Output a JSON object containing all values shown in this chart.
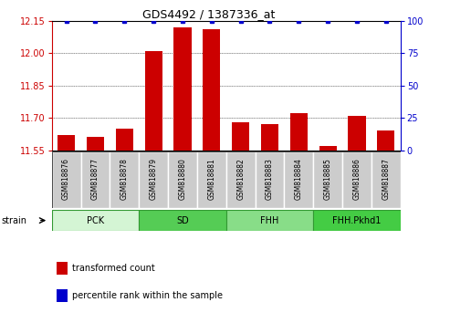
{
  "title": "GDS4492 / 1387336_at",
  "samples": [
    "GSM818876",
    "GSM818877",
    "GSM818878",
    "GSM818879",
    "GSM818880",
    "GSM818881",
    "GSM818882",
    "GSM818883",
    "GSM818884",
    "GSM818885",
    "GSM818886",
    "GSM818887"
  ],
  "transformed_counts": [
    11.62,
    11.61,
    11.65,
    12.01,
    12.12,
    12.11,
    11.68,
    11.67,
    11.72,
    11.57,
    11.71,
    11.64
  ],
  "percentile_ranks": [
    100,
    100,
    100,
    100,
    100,
    100,
    100,
    100,
    100,
    100,
    100,
    100
  ],
  "ylim_left": [
    11.55,
    12.15
  ],
  "ylim_right": [
    0,
    100
  ],
  "yticks_left": [
    11.55,
    11.7,
    11.85,
    12.0,
    12.15
  ],
  "yticks_right": [
    0,
    25,
    50,
    75,
    100
  ],
  "groups": [
    {
      "label": "PCK",
      "start": 0,
      "end": 3,
      "color": "#d4f5d4"
    },
    {
      "label": "SD",
      "start": 3,
      "end": 6,
      "color": "#55cc55"
    },
    {
      "label": "FHH",
      "start": 6,
      "end": 9,
      "color": "#88dd88"
    },
    {
      "label": "FHH.Pkhd1",
      "start": 9,
      "end": 12,
      "color": "#44cc44"
    }
  ],
  "bar_color": "#cc0000",
  "dot_color": "#0000cc",
  "grid_color": "#000000",
  "tick_color_left": "#cc0000",
  "tick_color_right": "#0000cc",
  "bar_width": 0.6,
  "sample_box_color": "#cccccc",
  "sample_box_edge": "#aaaaaa",
  "strain_label": "strain",
  "legend_items": [
    {
      "label": "transformed count",
      "color": "#cc0000"
    },
    {
      "label": "percentile rank within the sample",
      "color": "#0000cc"
    }
  ],
  "title_fontsize": 9,
  "tick_fontsize": 7,
  "sample_fontsize": 5.5,
  "group_fontsize": 7,
  "legend_fontsize": 7,
  "strain_fontsize": 7
}
